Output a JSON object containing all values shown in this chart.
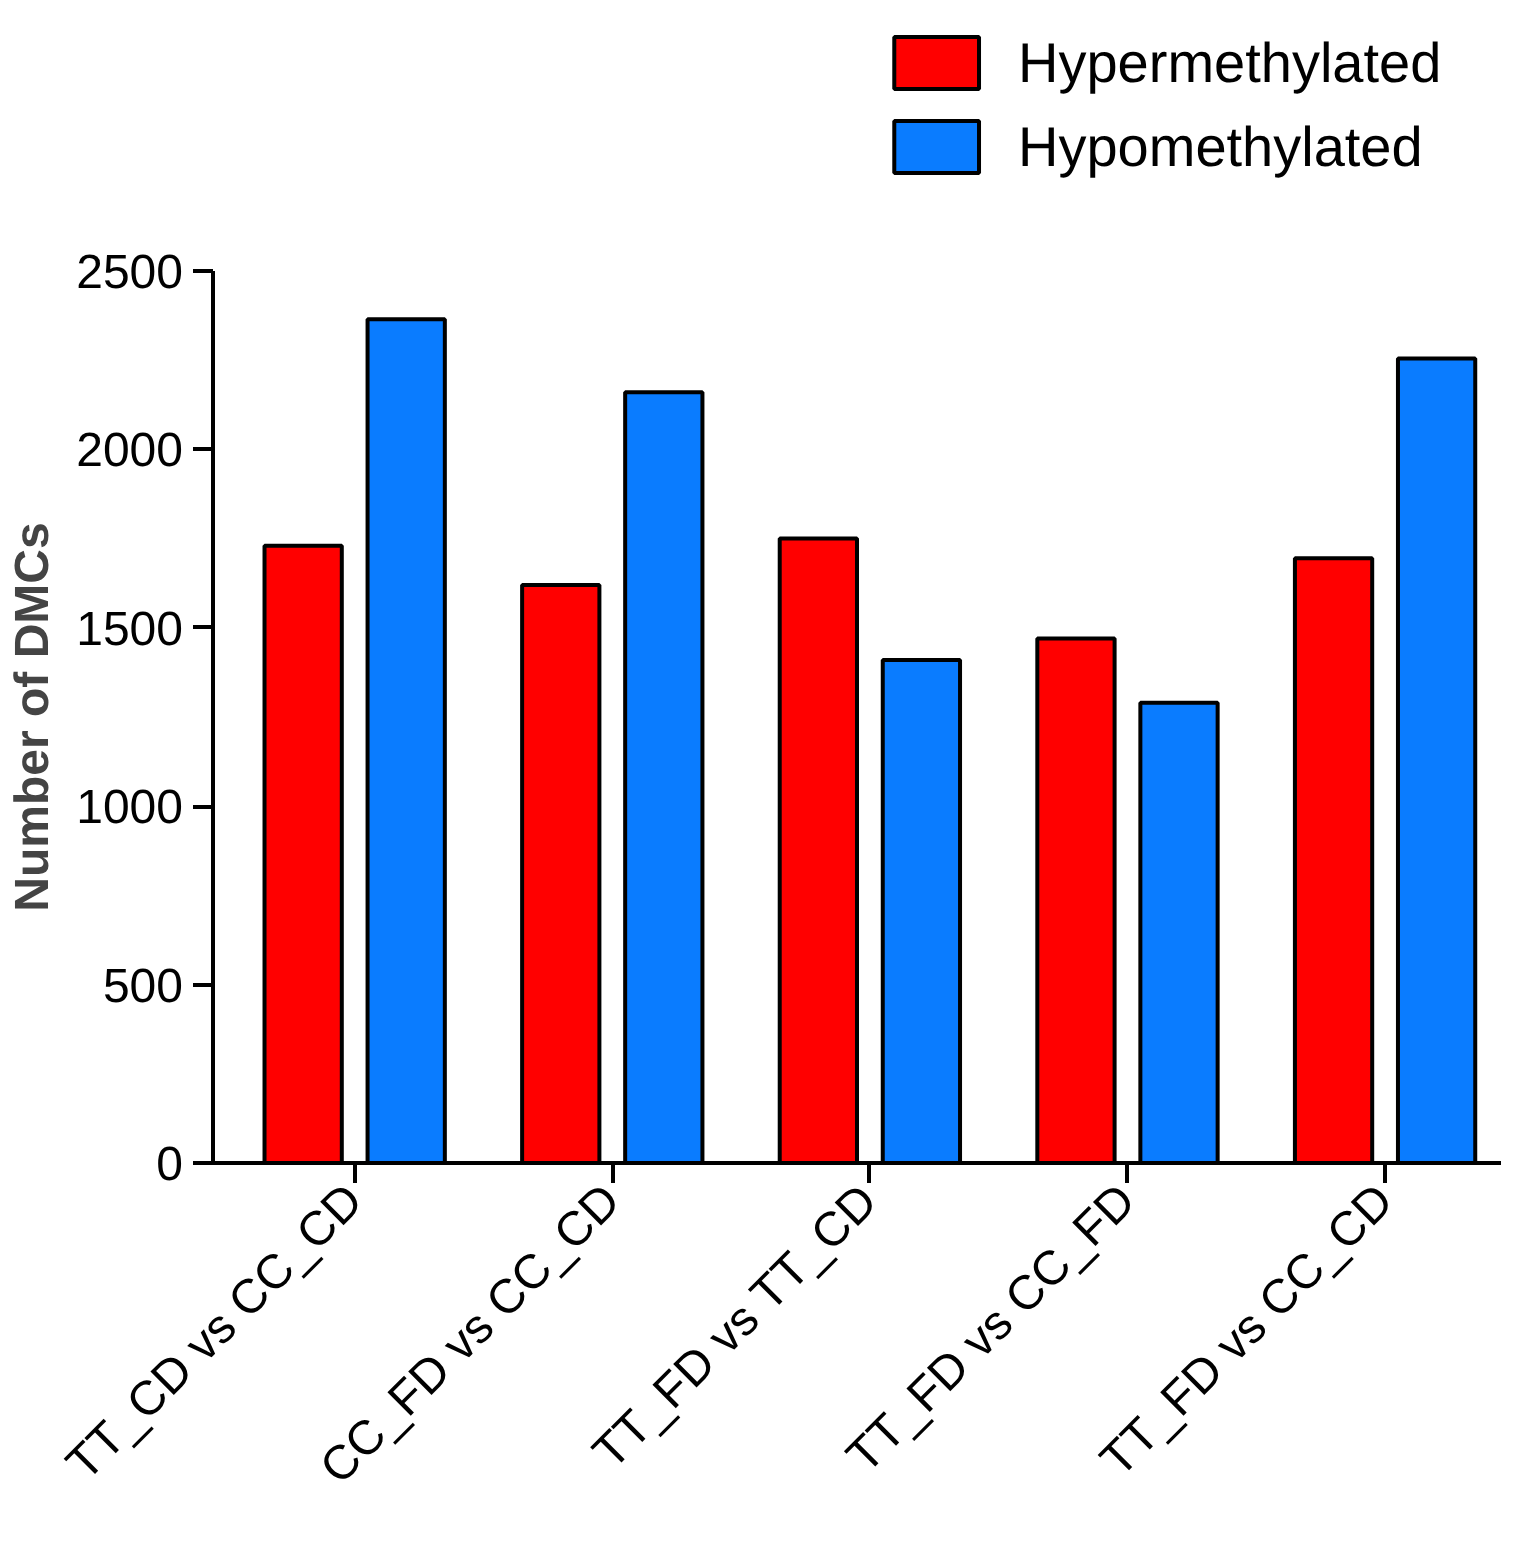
{
  "chart_data": {
    "type": "bar",
    "ylabel": "Number of DMCs",
    "categories": [
      "TT_CD vs CC_CD",
      "CC_FD vs CC_CD",
      "TT_FD vs TT_CD",
      "TT_FD vs CC_FD",
      "TT_FD vs CC_CD"
    ],
    "series": [
      {
        "name": "Hypermethylated",
        "color": "#ff0000",
        "values": [
          1730,
          1620,
          1750,
          1470,
          1695
        ]
      },
      {
        "name": "Hypomethylated",
        "color": "#0a7cff",
        "values": [
          2365,
          2160,
          1410,
          1290,
          2255
        ]
      }
    ],
    "ylim": [
      0,
      2500
    ],
    "yticks": [
      0,
      500,
      1000,
      1500,
      2000,
      2500
    ],
    "grid": false,
    "legend": "top right"
  }
}
